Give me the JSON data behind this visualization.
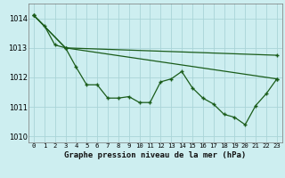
{
  "title": "Graphe pression niveau de la mer (hPa)",
  "background_color": "#cdeef0",
  "grid_color": "#aad4d8",
  "line_color": "#1a5c1a",
  "xlim": [
    -0.5,
    23.5
  ],
  "ylim": [
    1009.8,
    1014.5
  ],
  "yticks": [
    1010,
    1011,
    1012,
    1013,
    1014
  ],
  "xtick_labels": [
    "0",
    "1",
    "2",
    "3",
    "4",
    "5",
    "6",
    "7",
    "8",
    "9",
    "10",
    "11",
    "12",
    "13",
    "14",
    "15",
    "16",
    "17",
    "18",
    "19",
    "20",
    "21",
    "22",
    "23"
  ],
  "series1_x": [
    0,
    1,
    2,
    3,
    4,
    5,
    6,
    7,
    8,
    9,
    10,
    11,
    12,
    13,
    14,
    15,
    16,
    17,
    18,
    19,
    20,
    21,
    22,
    23
  ],
  "series1_y": [
    1014.1,
    1013.75,
    1013.1,
    1013.0,
    1012.35,
    1011.75,
    1011.75,
    1011.3,
    1011.3,
    1011.35,
    1011.15,
    1011.15,
    1011.85,
    1011.95,
    1012.2,
    1011.65,
    1011.3,
    1011.1,
    1010.75,
    1010.65,
    1010.4,
    1011.05,
    1011.45,
    1011.95
  ],
  "series2_x": [
    0,
    3,
    23
  ],
  "series2_y": [
    1014.1,
    1013.0,
    1011.95
  ],
  "series3_x": [
    0,
    3,
    23
  ],
  "series3_y": [
    1014.1,
    1013.0,
    1012.75
  ]
}
